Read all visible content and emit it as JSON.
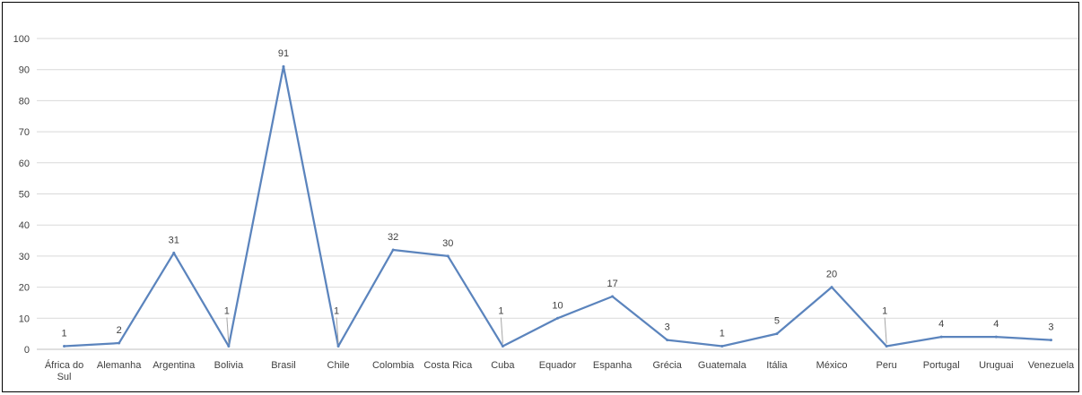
{
  "chart_data": {
    "type": "line",
    "title": "",
    "xlabel": "",
    "ylabel": "",
    "categories": [
      "África do Sul",
      "Alemanha",
      "Argentina",
      "Bolivia",
      "Brasil",
      "Chile",
      "Colombia",
      "Costa Rica",
      "Cuba",
      "Equador",
      "Espanha",
      "Grécia",
      "Guatemala",
      "Itália",
      "México",
      "Peru",
      "Portugal",
      "Uruguai",
      "Venezuela"
    ],
    "series": [
      {
        "values": [
          1,
          2,
          31,
          1,
          91,
          1,
          32,
          30,
          1,
          10,
          17,
          3,
          1,
          5,
          20,
          1,
          4,
          4,
          3
        ]
      }
    ],
    "ylim": [
      0,
      100
    ],
    "yticks": [
      0,
      10,
      20,
      30,
      40,
      50,
      60,
      70,
      80,
      90,
      100
    ],
    "grid": true,
    "data_labels": true,
    "colors": {
      "line": "#5b84bd",
      "grid": "#d9d9d9",
      "axis": "#bfbfbf"
    }
  }
}
